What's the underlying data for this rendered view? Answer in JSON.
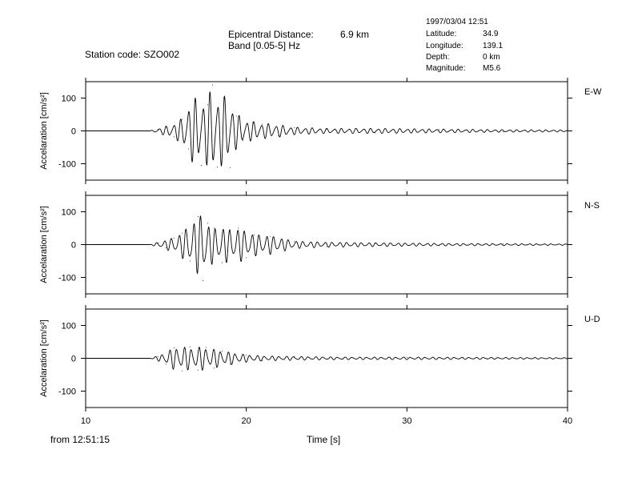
{
  "header": {
    "station": "Station code: SZO002",
    "epi_label": "Epicentral Distance:",
    "epi_value": "6.9 km",
    "band": "Band [0.05-5] Hz",
    "datetime": "1997/03/04 12:51",
    "meta": [
      {
        "label": "Latitude:",
        "value": "34.9"
      },
      {
        "label": "Longitude:",
        "value": "139.1"
      },
      {
        "label": "Depth:",
        "value": "0 km"
      },
      {
        "label": "Magnitude:",
        "value": "M5.6"
      }
    ]
  },
  "footer": {
    "from": "from 12:51:15",
    "xlabel": "Time [s]"
  },
  "chart_data": [
    {
      "type": "line",
      "component": "E-W",
      "ylabel": "Accelaration [cm/s²]",
      "xlim": [
        10,
        40
      ],
      "ylim": [
        -150,
        150
      ],
      "xticks": [
        "10",
        "20",
        "30",
        "40"
      ],
      "yticks": [
        "100",
        "0",
        "-100"
      ],
      "x": [
        14.0,
        14.5,
        15.0,
        15.5,
        16.0,
        16.4,
        16.8,
        17.2,
        17.6,
        17.9,
        18.2,
        18.6,
        19.0,
        19.4,
        19.8,
        20.4,
        21.0,
        22.0,
        23.0,
        25.0,
        28.0,
        32.0,
        36.0,
        40.0
      ],
      "amplitude": [
        0,
        8,
        15,
        25,
        40,
        90,
        105,
        100,
        110,
        140,
        110,
        112,
        95,
        55,
        40,
        30,
        25,
        20,
        12,
        8,
        8,
        6,
        4,
        3
      ],
      "values": [
        0,
        5,
        12,
        -18,
        35,
        -55,
        90,
        -105,
        80,
        140,
        -110,
        100,
        -112,
        45,
        -30,
        25,
        20,
        -15,
        10,
        6,
        -6,
        4,
        -3,
        0
      ]
    },
    {
      "type": "line",
      "component": "N-S",
      "ylabel": "Accelaration [cm/s²]",
      "xlim": [
        10,
        40
      ],
      "ylim": [
        -150,
        150
      ],
      "xticks": [
        "10",
        "20",
        "30",
        "40"
      ],
      "yticks": [
        "100",
        "0",
        "-100"
      ],
      "x": [
        14.0,
        14.5,
        15.0,
        15.5,
        16.0,
        16.5,
        17.0,
        17.3,
        17.6,
        18.0,
        18.5,
        19.0,
        19.5,
        20.0,
        20.5,
        21.5,
        23.0,
        25.0,
        28.0,
        32.0,
        36.0,
        40.0
      ],
      "amplitude": [
        0,
        8,
        15,
        25,
        40,
        70,
        90,
        110,
        70,
        55,
        60,
        50,
        55,
        45,
        35,
        30,
        12,
        8,
        6,
        4,
        3,
        2
      ],
      "values": [
        0,
        5,
        -10,
        20,
        35,
        -50,
        85,
        -110,
        65,
        50,
        -55,
        45,
        50,
        -40,
        30,
        25,
        10,
        -6,
        5,
        -3,
        2,
        0
      ]
    },
    {
      "type": "line",
      "component": "U-D",
      "ylabel": "Accelaration [cm/s²]",
      "xlim": [
        10,
        40
      ],
      "ylim": [
        -150,
        150
      ],
      "xticks": [
        "10",
        "20",
        "30",
        "40"
      ],
      "yticks": [
        "100",
        "0",
        "-100"
      ],
      "x": [
        14.0,
        14.5,
        15.0,
        15.5,
        16.0,
        16.5,
        17.0,
        17.5,
        18.0,
        18.5,
        19.0,
        20.0,
        21.0,
        23.0,
        26.0,
        30.0,
        35.0,
        40.0
      ],
      "amplitude": [
        0,
        8,
        20,
        35,
        38,
        35,
        38,
        35,
        30,
        25,
        20,
        12,
        8,
        6,
        4,
        4,
        3,
        2
      ],
      "values": [
        0,
        5,
        -18,
        32,
        -38,
        35,
        -36,
        33,
        -30,
        22,
        -18,
        10,
        -7,
        5,
        -3,
        3,
        -2,
        0
      ]
    }
  ]
}
